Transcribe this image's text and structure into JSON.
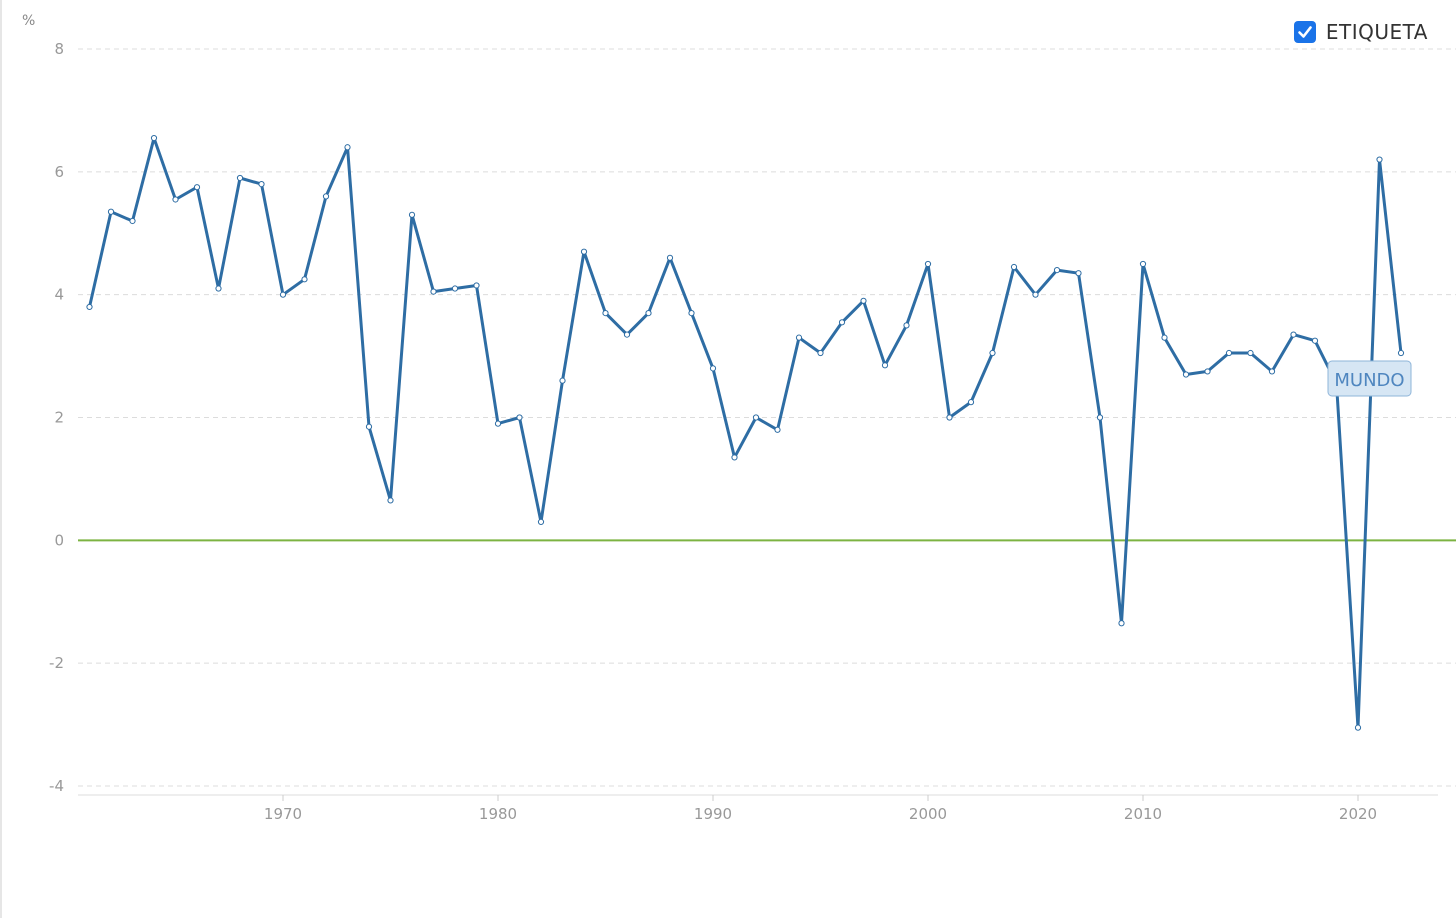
{
  "legend": {
    "label": "ETIQUETA",
    "checked": true
  },
  "chart_data": {
    "type": "line",
    "ylabel": "%",
    "ylim": [
      -4,
      8
    ],
    "xlim": [
      1961,
      2023
    ],
    "yticks": [
      "8",
      "6",
      "4",
      "2",
      "0",
      "-2",
      "-4"
    ],
    "xticks": [
      "1970",
      "1980",
      "1990",
      "2000",
      "2010",
      "2020"
    ],
    "grid": true,
    "zero_line_color": "#7cb342",
    "series": [
      {
        "name": "MUNDO",
        "color": "#2e6da4",
        "x": [
          1961,
          1962,
          1963,
          1964,
          1965,
          1966,
          1967,
          1968,
          1969,
          1970,
          1971,
          1972,
          1973,
          1974,
          1975,
          1976,
          1977,
          1978,
          1979,
          1980,
          1981,
          1982,
          1983,
          1984,
          1985,
          1986,
          1987,
          1988,
          1989,
          1990,
          1991,
          1992,
          1993,
          1994,
          1995,
          1996,
          1997,
          1998,
          1999,
          2000,
          2001,
          2002,
          2003,
          2004,
          2005,
          2006,
          2007,
          2008,
          2009,
          2010,
          2011,
          2012,
          2013,
          2014,
          2015,
          2016,
          2017,
          2018,
          2019,
          2020,
          2021,
          2022
        ],
        "values": [
          3.8,
          5.35,
          5.2,
          6.55,
          5.55,
          5.75,
          4.1,
          5.9,
          5.8,
          4.0,
          4.25,
          5.6,
          6.4,
          1.85,
          0.65,
          5.3,
          4.05,
          4.1,
          4.15,
          1.9,
          2.0,
          0.3,
          2.6,
          4.7,
          3.7,
          3.35,
          3.7,
          4.6,
          3.7,
          2.8,
          1.35,
          2.0,
          1.8,
          3.3,
          3.05,
          3.55,
          3.9,
          2.85,
          3.5,
          4.5,
          2.0,
          2.25,
          3.05,
          4.45,
          4.0,
          4.4,
          4.35,
          2.0,
          -1.35,
          4.5,
          3.3,
          2.7,
          2.75,
          3.05,
          3.05,
          2.75,
          3.35,
          3.25,
          2.55,
          -3.05,
          6.2,
          3.05
        ]
      }
    ]
  }
}
